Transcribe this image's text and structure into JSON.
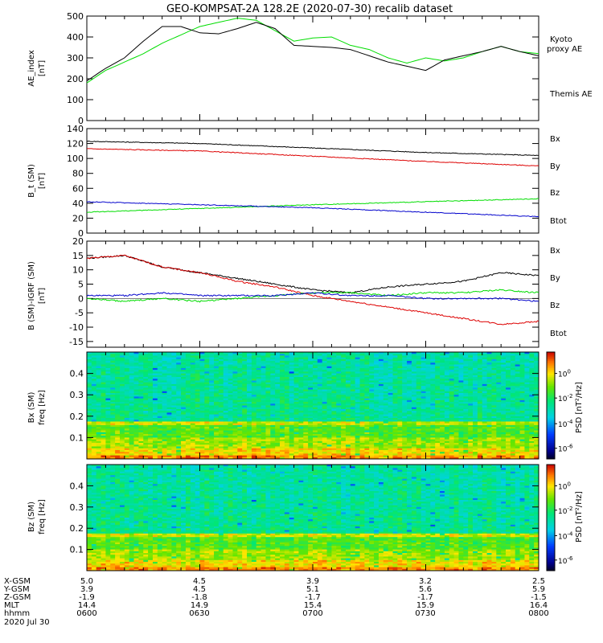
{
  "title": "GEO-KOMPSAT-2A 128.2E (2020-07-30) recalib dataset",
  "colors": {
    "black": "#000000",
    "green": "#00dd00",
    "red": "#dd0000",
    "blue": "#0000cc"
  },
  "chart_data": [
    {
      "type": "line",
      "ylabel": "AE_index",
      "yunit": "[nT]",
      "ylim": [
        0,
        500
      ],
      "yticks": [
        0,
        100,
        200,
        300,
        400,
        500
      ],
      "xlim": [
        "06:00",
        "08:00"
      ],
      "legend": [
        {
          "text": "Kyoto",
          "color": "green"
        },
        {
          "text": "proxy AE",
          "color": "green"
        },
        {
          "text": "Themis AE",
          "color": "black"
        }
      ],
      "series": [
        {
          "name": "Kyoto proxy AE",
          "color": "green",
          "x": [
            "06:00",
            "06:05",
            "06:10",
            "06:15",
            "06:20",
            "06:25",
            "06:30",
            "06:35",
            "06:40",
            "06:45",
            "06:50",
            "06:55",
            "07:00",
            "07:05",
            "07:10",
            "07:15",
            "07:20",
            "07:25",
            "07:30",
            "07:35",
            "07:40",
            "07:45",
            "07:50",
            "07:55",
            "08:00"
          ],
          "values": [
            180,
            240,
            280,
            320,
            370,
            410,
            450,
            470,
            490,
            480,
            430,
            380,
            395,
            400,
            360,
            340,
            300,
            275,
            300,
            285,
            300,
            330,
            355,
            330,
            320
          ]
        },
        {
          "name": "Themis AE",
          "color": "black",
          "x": [
            "06:00",
            "06:05",
            "06:10",
            "06:15",
            "06:20",
            "06:25",
            "06:30",
            "06:35",
            "06:40",
            "06:45",
            "06:50",
            "06:55",
            "07:00",
            "07:05",
            "07:10",
            "07:15",
            "07:20",
            "07:25",
            "07:30",
            "07:35",
            "07:40",
            "07:45",
            "07:50",
            "07:55",
            "08:00"
          ],
          "values": [
            190,
            250,
            300,
            380,
            450,
            450,
            420,
            415,
            440,
            470,
            440,
            360,
            355,
            350,
            340,
            310,
            280,
            260,
            240,
            290,
            310,
            330,
            355,
            330,
            310
          ]
        }
      ]
    },
    {
      "type": "line",
      "ylabel": "B_t (SM)",
      "yunit": "[nT]",
      "ylim": [
        0,
        140
      ],
      "yticks": [
        0,
        20,
        40,
        60,
        80,
        100,
        120,
        140
      ],
      "xlim": [
        "06:00",
        "08:00"
      ],
      "legend": [
        {
          "text": "Bx",
          "color": "blue"
        },
        {
          "text": "By",
          "color": "green"
        },
        {
          "text": "Bz",
          "color": "red"
        },
        {
          "text": "Btot",
          "color": "black"
        }
      ],
      "series": [
        {
          "name": "Btot",
          "color": "black",
          "x": [
            "06:00",
            "06:30",
            "07:00",
            "07:30",
            "08:00"
          ],
          "values": [
            123,
            120,
            114,
            108,
            104
          ]
        },
        {
          "name": "Bz",
          "color": "red",
          "x": [
            "06:00",
            "06:30",
            "07:00",
            "07:30",
            "08:00"
          ],
          "values": [
            113,
            110,
            103,
            96,
            90
          ]
        },
        {
          "name": "By",
          "color": "green",
          "x": [
            "06:00",
            "06:30",
            "07:00",
            "07:30",
            "08:00"
          ],
          "values": [
            28,
            33,
            38,
            42,
            46
          ]
        },
        {
          "name": "Bx",
          "color": "blue",
          "x": [
            "06:00",
            "06:30",
            "07:00",
            "07:30",
            "08:00"
          ],
          "values": [
            42,
            38,
            34,
            28,
            22
          ]
        }
      ]
    },
    {
      "type": "line",
      "ylabel": "B (SM)-IGRF (SM)",
      "yunit": "[nT]",
      "ylim": [
        -17,
        20
      ],
      "yticks": [
        -15,
        -10,
        -5,
        0,
        5,
        10,
        15,
        20
      ],
      "xlim": [
        "06:00",
        "08:00"
      ],
      "legend": [
        {
          "text": "Bx",
          "color": "blue"
        },
        {
          "text": "By",
          "color": "green"
        },
        {
          "text": "Bz",
          "color": "red"
        },
        {
          "text": "Btot",
          "color": "black"
        }
      ],
      "series": [
        {
          "name": "Btot",
          "color": "black",
          "x": [
            "06:00",
            "06:10",
            "06:20",
            "06:30",
            "06:40",
            "06:50",
            "07:00",
            "07:10",
            "07:20",
            "07:30",
            "07:40",
            "07:50",
            "08:00"
          ],
          "values": [
            14,
            15,
            11,
            9,
            7,
            5,
            3,
            2,
            4,
            5,
            6,
            9,
            8
          ]
        },
        {
          "name": "Bz",
          "color": "red",
          "x": [
            "06:00",
            "06:10",
            "06:20",
            "06:30",
            "06:40",
            "06:50",
            "07:00",
            "07:10",
            "07:20",
            "07:30",
            "07:40",
            "07:50",
            "08:00"
          ],
          "values": [
            14,
            15,
            11,
            9,
            6,
            4,
            1,
            -1,
            -3,
            -5,
            -7,
            -9,
            -8
          ]
        },
        {
          "name": "By",
          "color": "green",
          "x": [
            "06:00",
            "06:10",
            "06:20",
            "06:30",
            "06:40",
            "06:50",
            "07:00",
            "07:10",
            "07:20",
            "07:30",
            "07:40",
            "07:50",
            "08:00"
          ],
          "values": [
            0,
            -1,
            0,
            -1,
            0,
            1,
            2,
            2,
            1,
            2,
            2,
            3,
            2
          ]
        },
        {
          "name": "Bx",
          "color": "blue",
          "x": [
            "06:00",
            "06:10",
            "06:20",
            "06:30",
            "06:40",
            "06:50",
            "07:00",
            "07:10",
            "07:20",
            "07:30",
            "07:40",
            "07:50",
            "08:00"
          ],
          "values": [
            1,
            1,
            2,
            1,
            1,
            1,
            2,
            1,
            1,
            0,
            0,
            0,
            -1
          ]
        }
      ]
    },
    {
      "type": "heatmap",
      "ylabel": "Bx (SM)",
      "ysublabel": "freq [Hz]",
      "ylim": [
        0,
        0.5
      ],
      "yticks": [
        0.1,
        0.2,
        0.3,
        0.4
      ],
      "xlim": [
        "06:00",
        "08:00"
      ],
      "colorbar": {
        "label": "PSD [nT²/Hz]",
        "ticks": [
          "10^0",
          "10^-2",
          "10^-4",
          "10^-6"
        ]
      }
    },
    {
      "type": "heatmap",
      "ylabel": "Bz (SM)",
      "ysublabel": "freq [Hz]",
      "ylim": [
        0,
        0.5
      ],
      "yticks": [
        0.1,
        0.2,
        0.3,
        0.4
      ],
      "xlim": [
        "06:00",
        "08:00"
      ],
      "colorbar": {
        "label": "PSD [nT²/Hz]",
        "ticks": [
          "10^0",
          "10^-2",
          "10^-4",
          "10^-6"
        ]
      }
    }
  ],
  "xaxis_table": {
    "rows": [
      {
        "label": "X-GSM",
        "values": [
          "5.0",
          "4.5",
          "3.9",
          "3.2",
          "2.5"
        ]
      },
      {
        "label": "Y-GSM",
        "values": [
          "3.9",
          "4.5",
          "5.1",
          "5.6",
          "5.9"
        ]
      },
      {
        "label": "Z-GSM",
        "values": [
          "-1.9",
          "-1.8",
          "-1.7",
          "-1.7",
          "-1.5"
        ]
      },
      {
        "label": "MLT",
        "values": [
          "14.4",
          "14.9",
          "15.4",
          "15.9",
          "16.4"
        ]
      },
      {
        "label": "hhmm",
        "values": [
          "0600",
          "0630",
          "0700",
          "0730",
          "0800"
        ]
      }
    ],
    "date": "2020 Jul 30"
  }
}
